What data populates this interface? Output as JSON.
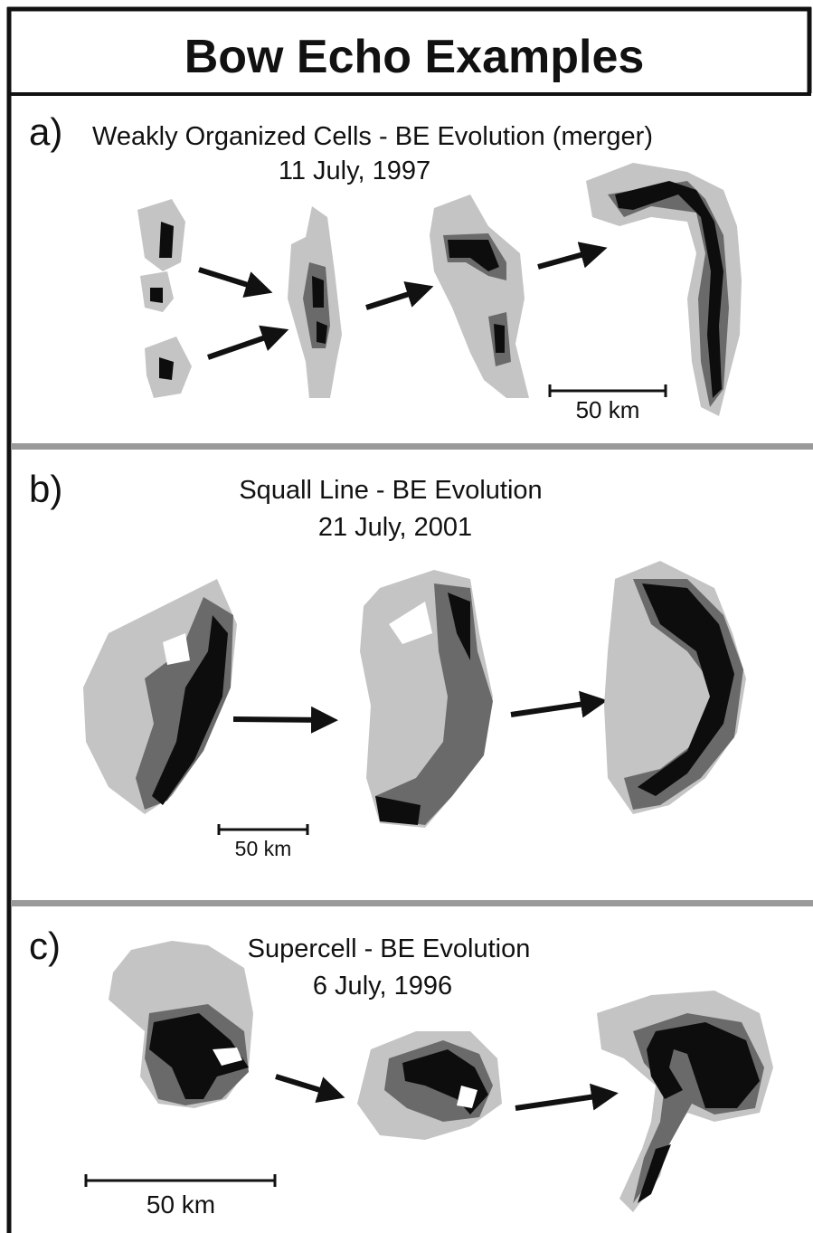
{
  "header": {
    "title": "Bow Echo Examples"
  },
  "panels": [
    {
      "label": "a)",
      "caption": [
        "Weakly Organized Cells - BE Evolution (merger)",
        "11 July, 1997"
      ],
      "scale": "50 km"
    },
    {
      "label": "b)",
      "caption": [
        "Squall Line - BE Evolution",
        "21 July, 2001"
      ],
      "scale": "50 km"
    },
    {
      "label": "c)",
      "caption": [
        "Supercell - BE Evolution",
        "6 July, 1996"
      ],
      "scale": "50 km"
    }
  ]
}
